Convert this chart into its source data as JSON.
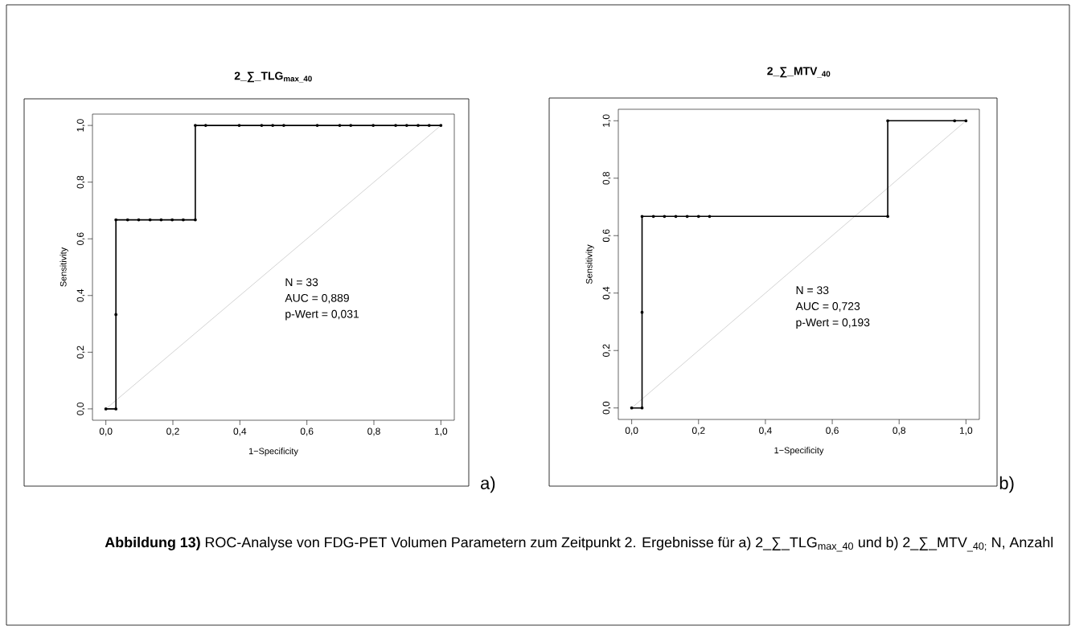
{
  "chart_data": [
    {
      "type": "line",
      "title": "2_∑_TLG$_{max_40}$",
      "xlabel": "1−Specificity",
      "ylabel": "Sensitivity",
      "xlim": [
        -0.04,
        1.04
      ],
      "ylim": [
        -0.04,
        1.04
      ],
      "xticks": [
        {
          "value": 0,
          "label": "0,0"
        },
        {
          "value": 0.2,
          "label": "0,2"
        },
        {
          "value": 0.4,
          "label": "0,4"
        },
        {
          "value": 0.6,
          "label": "0,6"
        },
        {
          "value": 0.8,
          "label": "0,8"
        },
        {
          "value": 1,
          "label": "1,0"
        }
      ],
      "yticks": [
        {
          "value": 0,
          "label": "0,0"
        },
        {
          "value": 0.2,
          "label": "0,2"
        },
        {
          "value": 0.4,
          "label": "0,4"
        },
        {
          "value": 0.6,
          "label": "0,6"
        },
        {
          "value": 0.8,
          "label": "0,8"
        },
        {
          "value": 1,
          "label": "1,0"
        }
      ],
      "marker": "circle",
      "line_style": "solid",
      "series": [
        {
          "color": "#c8c8c8",
          "marker": "none",
          "x": [
            0,
            1
          ],
          "values": [
            0,
            1
          ]
        },
        {
          "color": "#000000",
          "x": [
            0,
            0.03,
            0.03,
            0.03,
            0.065,
            0.098,
            0.132,
            0.165,
            0.198,
            0.231,
            0.267,
            0.267,
            0.298,
            0.398,
            0.465,
            0.498,
            0.531,
            0.631,
            0.698,
            0.731,
            0.798,
            0.865,
            0.898,
            0.932,
            0.965,
            1
          ],
          "values": [
            0,
            0,
            0.333,
            0.667,
            0.667,
            0.667,
            0.667,
            0.667,
            0.667,
            0.667,
            0.667,
            1,
            1,
            1,
            1,
            1,
            1,
            1,
            1,
            1,
            1,
            1,
            1,
            1,
            1,
            1
          ]
        }
      ],
      "annotations": [
        "N        = 33",
        "AUC   = 0,889",
        "p-Wert = 0,031",
        "a)"
      ]
    },
    {
      "type": "line",
      "title": "2_∑_MTV$_{_40}$",
      "xlabel": "1−Specificity",
      "ylabel": "Sensitivity",
      "xlim": [
        -0.04,
        1.04
      ],
      "ylim": [
        -0.04,
        1.04
      ],
      "xticks": [
        {
          "value": 0,
          "label": "0,0"
        },
        {
          "value": 0.2,
          "label": "0,2"
        },
        {
          "value": 0.4,
          "label": "0,4"
        },
        {
          "value": 0.6,
          "label": "0,6"
        },
        {
          "value": 0.8,
          "label": "0,8"
        },
        {
          "value": 1,
          "label": "1,0"
        }
      ],
      "yticks": [
        {
          "value": 0,
          "label": "0,0"
        },
        {
          "value": 0.2,
          "label": "0,2"
        },
        {
          "value": 0.4,
          "label": "0,4"
        },
        {
          "value": 0.6,
          "label": "0,6"
        },
        {
          "value": 0.8,
          "label": "0,8"
        },
        {
          "value": 1,
          "label": "1,0"
        }
      ],
      "marker": "circle",
      "line_style": "solid",
      "series": [
        {
          "color": "#c8c8c8",
          "marker": "none",
          "x": [
            0,
            1
          ],
          "values": [
            0,
            1
          ]
        },
        {
          "color": "#000000",
          "x": [
            0,
            0.031,
            0.031,
            0.031,
            0.065,
            0.098,
            0.132,
            0.166,
            0.2,
            0.233,
            0.766,
            0.766,
            0.966,
            1
          ],
          "values": [
            0,
            0,
            0.333,
            0.667,
            0.667,
            0.667,
            0.667,
            0.667,
            0.667,
            0.667,
            0.667,
            1,
            1,
            1
          ]
        }
      ],
      "annotations": [
        "N        = 33",
        "AUC   = 0,723",
        "p-Wert = 0,193",
        "b)",
        "**Abbildung 13)** ROC-Analyse von FDG-PET Volumen Parametern zum Zeitpunkt 2. Ergebnisse für a) 2_∑_TLG$_{max_40}$ und  b) 2_∑_MTV$_{_40;}$ N, Anzahl"
      ]
    }
  ]
}
